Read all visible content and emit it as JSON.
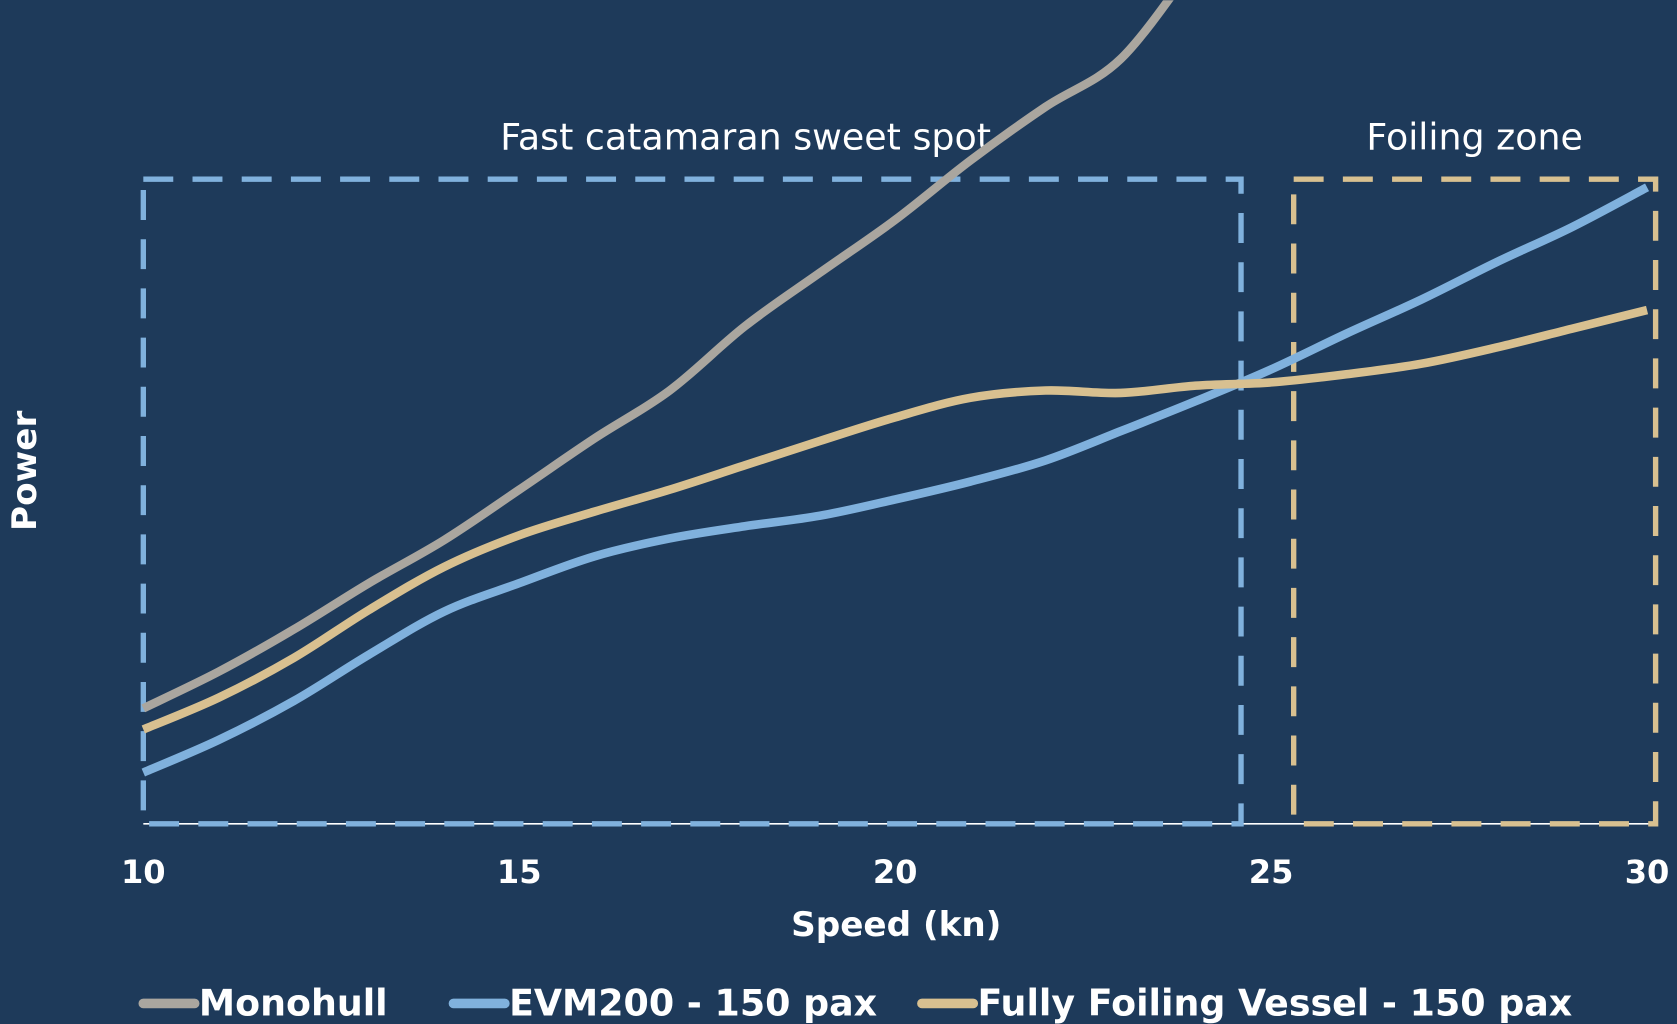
{
  "chart_data": {
    "type": "line",
    "xlabel": "Speed (kn)",
    "ylabel": "Power",
    "x": [
      10,
      11,
      12,
      13,
      14,
      15,
      16,
      17,
      18,
      19,
      20,
      21,
      22,
      23,
      24,
      25,
      26,
      27,
      28,
      29,
      30
    ],
    "xlim": [
      10,
      30
    ],
    "xticks": [
      10,
      15,
      20,
      25,
      30
    ],
    "ylim": [
      0,
      100
    ],
    "series": [
      {
        "name": "Monohull",
        "color": "#aaa69f",
        "values": [
          14.2,
          18.7,
          23.9,
          29.6,
          34.9,
          41.1,
          47.4,
          53.3,
          61.2,
          67.8,
          74.3,
          81.6,
          88.2,
          94.1,
          106,
          null,
          null,
          null,
          null,
          null,
          null
        ]
      },
      {
        "name": "EVM200 - 150 pax",
        "color": "#80b1dd",
        "values": [
          6.3,
          10.3,
          15.1,
          20.8,
          26.1,
          29.6,
          32.9,
          35.1,
          36.6,
          37.9,
          39.9,
          42.1,
          44.7,
          48.3,
          52.0,
          55.9,
          60.3,
          64.5,
          69.1,
          73.4,
          78.3
        ]
      },
      {
        "name": "Fully Foiling Vessel - 150 pax",
        "color": "#d8c090",
        "values": [
          11.6,
          15.5,
          20.4,
          26.3,
          31.6,
          35.5,
          38.4,
          41.1,
          44.1,
          47.1,
          50.0,
          52.4,
          53.3,
          53.0,
          53.9,
          54.3,
          55.3,
          56.6,
          58.6,
          60.9,
          63.2
        ]
      }
    ],
    "regions": [
      {
        "label": "Fast catamaran sweet spot",
        "xlim": [
          10,
          24.6
        ],
        "ylim": [
          0,
          79.3
        ],
        "color": "#80b1dd"
      },
      {
        "label": "Foiling zone",
        "xlim": [
          25.3,
          30
        ],
        "ylim": [
          0,
          79.3
        ],
        "color": "#d8c090"
      }
    ]
  }
}
